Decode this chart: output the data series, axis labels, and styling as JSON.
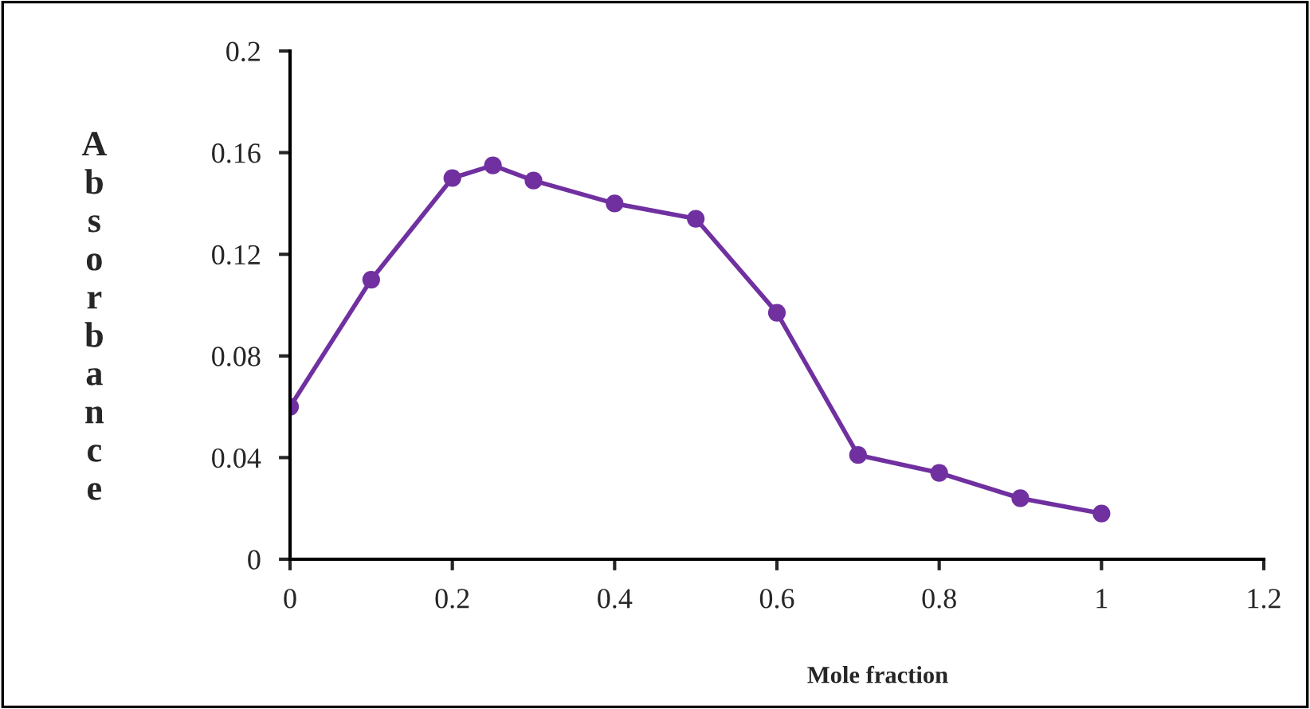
{
  "chart_data": {
    "type": "line",
    "xlabel": "Mole fraction",
    "ylabel": "Absorbance",
    "x": [
      0,
      0.1,
      0.2,
      0.25,
      0.3,
      0.4,
      0.5,
      0.6,
      0.7,
      0.8,
      0.9,
      1.0
    ],
    "series": [
      {
        "color": "#7030a0",
        "values": [
          0.06,
          0.11,
          0.15,
          0.155,
          0.149,
          0.14,
          0.134,
          0.097,
          0.041,
          0.034,
          0.024,
          0.018
        ]
      }
    ],
    "xlim": [
      0,
      1.2
    ],
    "xticks": [
      0,
      0.2,
      0.4,
      0.6,
      0.8,
      1,
      1.2
    ],
    "ylim": [
      0,
      0.2
    ],
    "yticks": [
      0,
      0.04,
      0.08,
      0.12,
      0.16,
      0.2
    ],
    "marker": "circle",
    "line_style": "solid",
    "grid": false,
    "legend": false
  }
}
